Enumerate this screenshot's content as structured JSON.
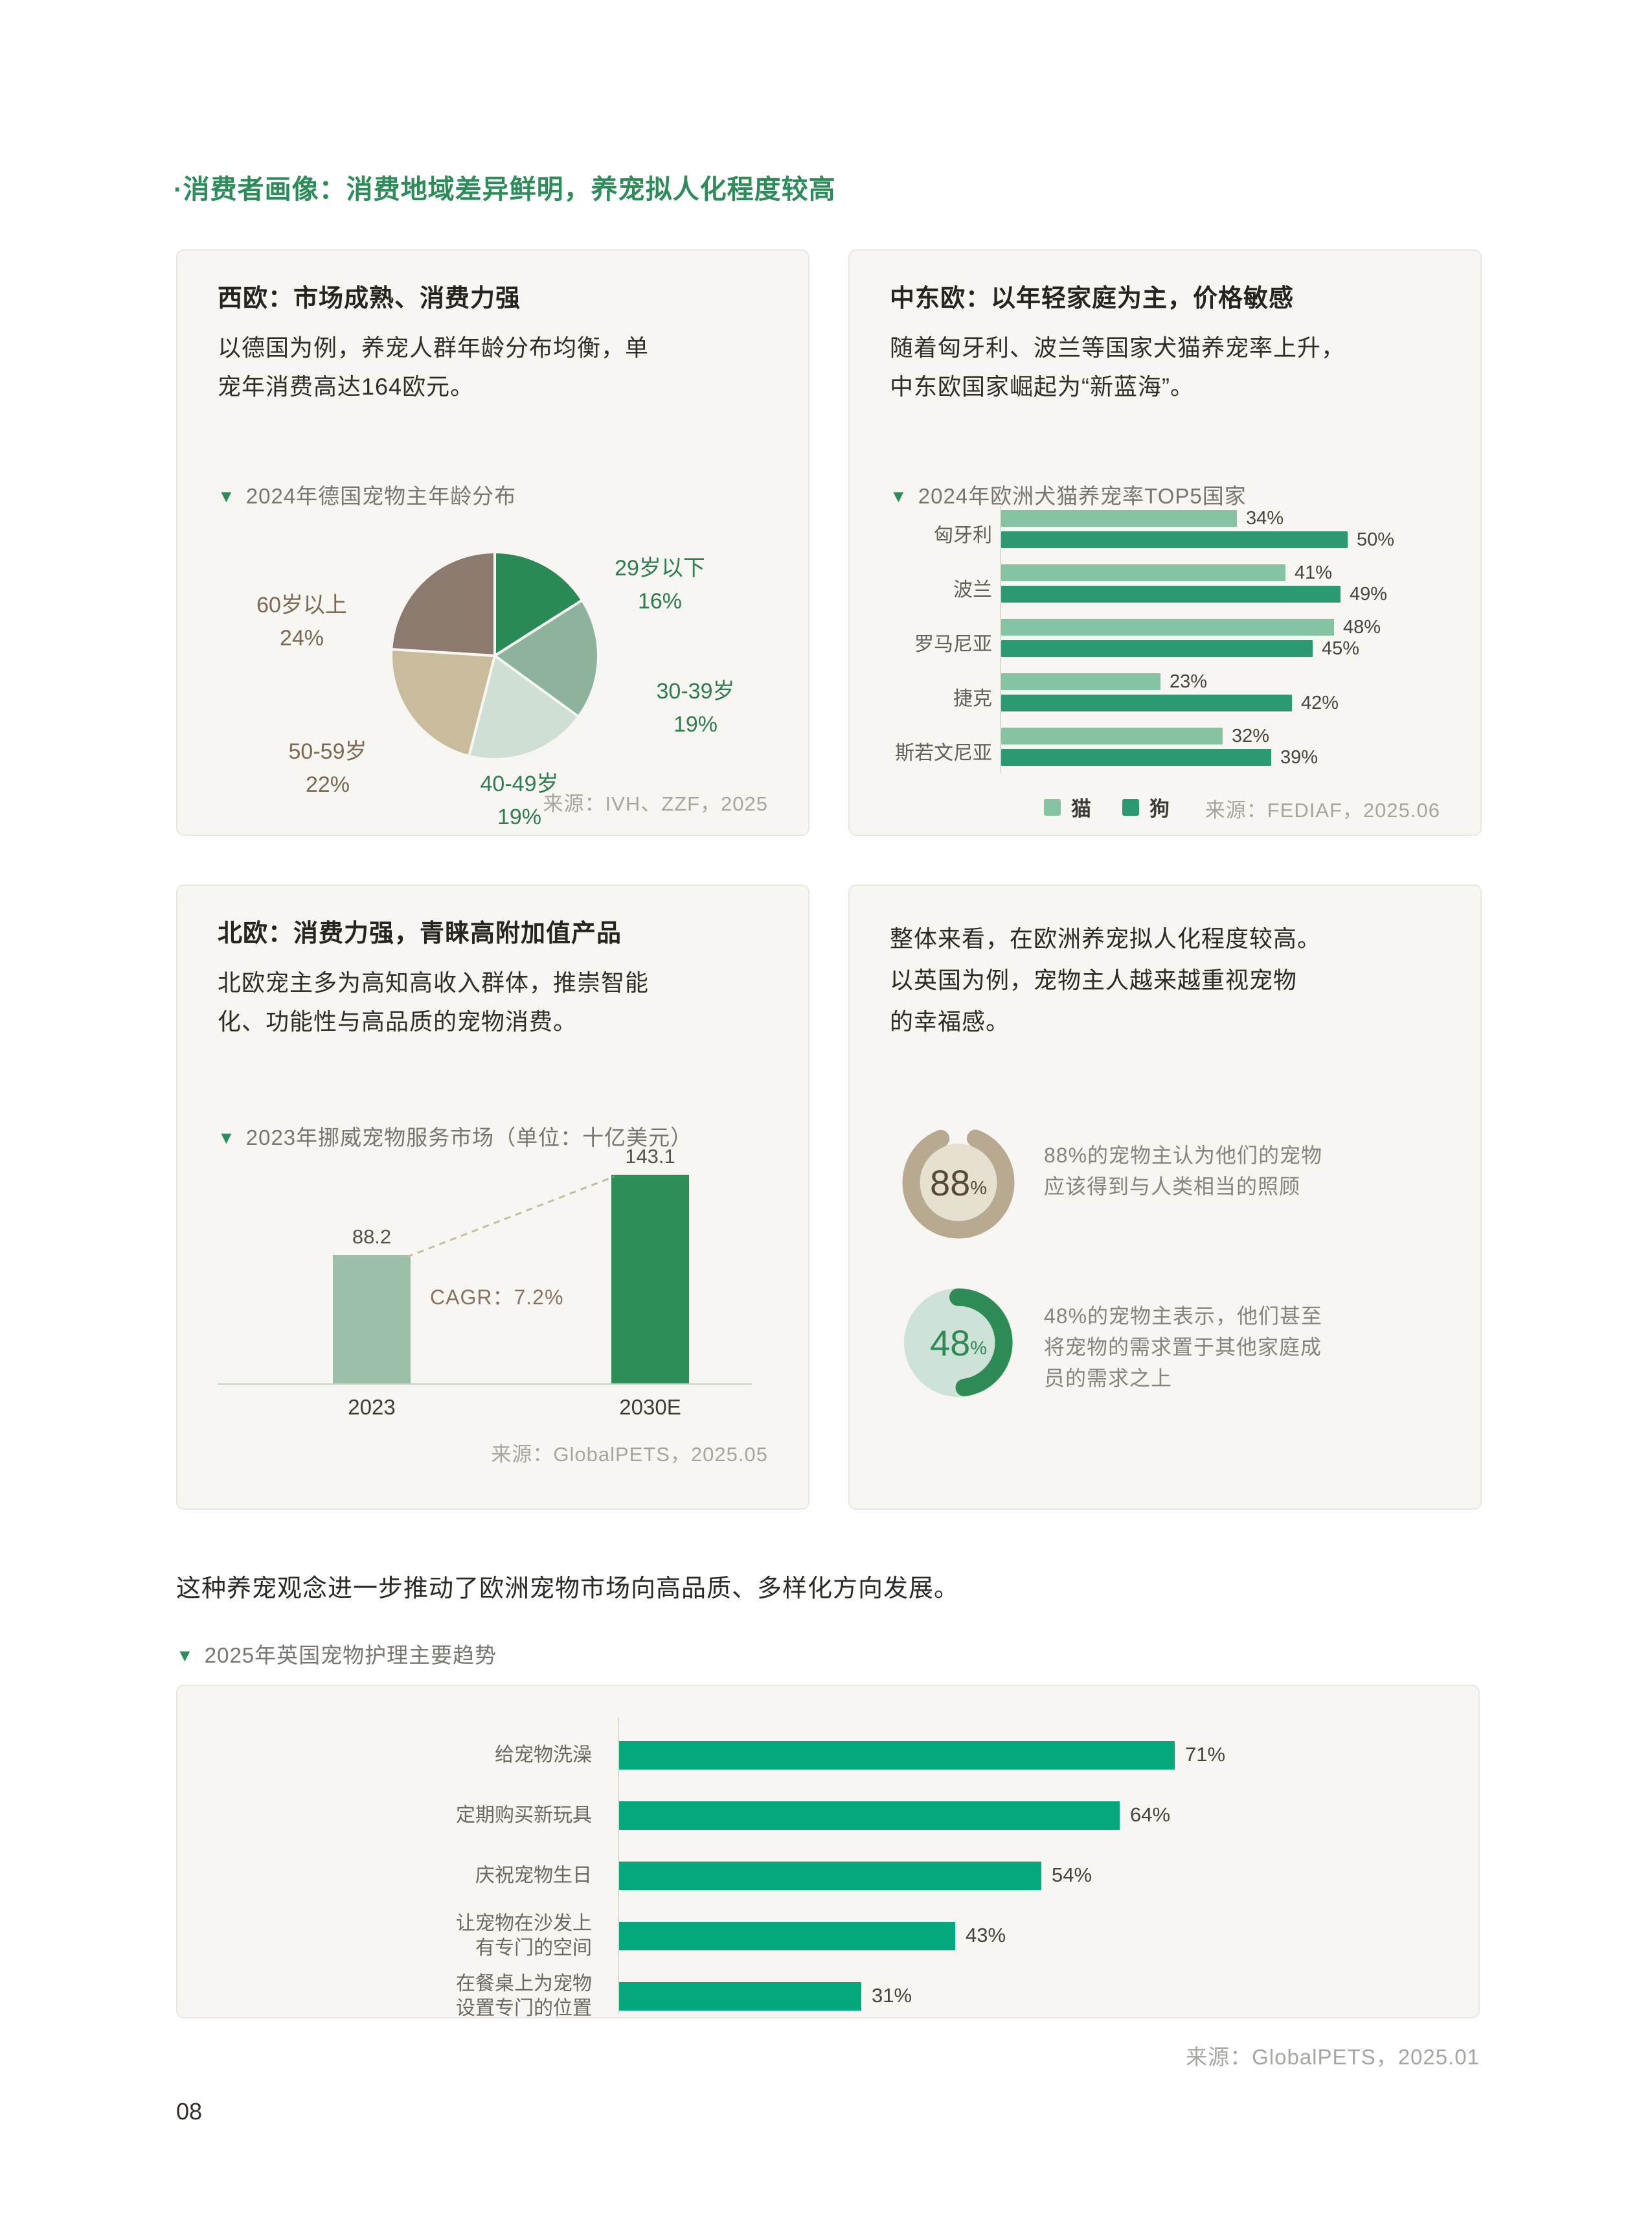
{
  "page": {
    "number": "08"
  },
  "header": {
    "title": "·消费者画像：消费地域差异鲜明，养宠拟人化程度较高"
  },
  "cards": {
    "west": {
      "title": "西欧：市场成熟、消费力强",
      "body": "以德国为例，养宠人群年龄分布均衡，单\n宠年消费高达164欧元。",
      "chart_title": "2024年德国宠物主年龄分布",
      "source": "来源：IVH、ZZF，2025"
    },
    "cee": {
      "title": "中东欧：以年轻家庭为主，价格敏感",
      "body": "随着匈牙利、波兰等国家犬猫养宠率上升，\n中东欧国家崛起为“新蓝海”。",
      "chart_title": "2024年欧洲犬猫养宠率TOP5国家",
      "source": "来源：FEDIAF，2025.06"
    },
    "nordic": {
      "title": "北欧：消费力强，青睐高附加值产品",
      "body": "北欧宠主多为高知高收入群体，推崇智能\n化、功能性与高品质的宠物消费。",
      "chart_title": "2023年挪威宠物服务市场（单位：十亿美元）",
      "source": "来源：GlobalPETS，2025.05"
    },
    "overall": {
      "body": "整体来看，在欧洲养宠拟人化程度较高。\n以英国为例，宠物主人越来越重视宠物\n的幸福感。",
      "stats": [
        {
          "value": "88",
          "unit": "%",
          "text": "88%的宠物主认为他们的宠物\n应该得到与人类相当的照顾"
        },
        {
          "value": "48",
          "unit": "%",
          "text": "48%的宠物主表示，他们甚至\n将宠物的需求置于其他家庭成\n员的需求之上"
        }
      ]
    }
  },
  "bottom": {
    "paragraph": "这种养宠观念进一步推动了欧洲宠物市场向高品质、多样化方向发展。",
    "chart_title": "2025年英国宠物护理主要趋势",
    "source": "来源：GlobalPETS，2025.01"
  },
  "colors": {
    "accent_green": "#2e8c5a",
    "cat": "#85c4a2",
    "dog": "#2b9a72",
    "trend_bar": "#05a87a",
    "card_bg": "#f7f6f3"
  },
  "chart_data": [
    {
      "id": "germany_owner_age_pie",
      "type": "pie",
      "title": "2024年德国宠物主年龄分布",
      "labels": [
        "29岁以下",
        "30-39岁",
        "40-49岁",
        "50-59岁",
        "60岁以上"
      ],
      "values": [
        16,
        19,
        19,
        22,
        24
      ],
      "unit": "%",
      "colors": [
        "#2a8a55",
        "#8db39d",
        "#cfdfd3",
        "#c9bc9d",
        "#8c7a6f"
      ],
      "label_colors": [
        "#2e7d4e",
        "#2e7d4e",
        "#2e7d4e",
        "#7b6951",
        "#7b6951"
      ],
      "start_angle": "top",
      "direction": "clockwise",
      "source": "来源：IVH、ZZF，2025"
    },
    {
      "id": "cee_top5_ownership",
      "type": "bar",
      "orientation": "horizontal",
      "title": "2024年欧洲犬猫养宠率TOP5国家",
      "categories": [
        "匈牙利",
        "波兰",
        "罗马尼亚",
        "捷克",
        "斯若文尼亚"
      ],
      "series": [
        {
          "name": "猫",
          "color": "#85c4a2",
          "values": [
            34,
            41,
            48,
            23,
            32
          ]
        },
        {
          "name": "狗",
          "color": "#2b9a72",
          "values": [
            50,
            49,
            45,
            42,
            39
          ]
        }
      ],
      "unit": "%",
      "xlim": [
        0,
        55
      ],
      "grid": false,
      "legend_position": "bottom",
      "source": "来源：FEDIAF，2025.06"
    },
    {
      "id": "norway_pet_service_market",
      "type": "bar",
      "orientation": "vertical",
      "title": "2023年挪威宠物服务市场（单位：十亿美元）",
      "categories": [
        "2023",
        "2030E"
      ],
      "values": [
        88.2,
        143.1
      ],
      "colors": [
        "#9cbfa8",
        "#2e8e57"
      ],
      "ylim": [
        0,
        160
      ],
      "annotation": "CAGR：7.2%",
      "source": "来源：GlobalPETS，2025.05"
    },
    {
      "id": "owner_attitude_donuts",
      "type": "pie",
      "subtype": "donut",
      "values": [
        88,
        48
      ],
      "unit": "%",
      "ring_colors": [
        "#b7aa90",
        "#2e8b55"
      ],
      "track_colors": [
        "#e6e0d1",
        "#cfe2d7"
      ]
    },
    {
      "id": "uk_pet_care_trends",
      "type": "bar",
      "orientation": "horizontal",
      "title": "2025年英国宠物护理主要趋势",
      "categories": [
        "给宠物洗澡",
        "定期购买新玩具",
        "庆祝宠物生日",
        "让宠物在沙发上\n有专门的空间",
        "在餐桌上为宠物\n设置专门的位置"
      ],
      "values": [
        71,
        64,
        54,
        43,
        31
      ],
      "unit": "%",
      "color": "#05a87a",
      "xlim": [
        0,
        100
      ],
      "source": "来源：GlobalPETS，2025.01"
    }
  ]
}
